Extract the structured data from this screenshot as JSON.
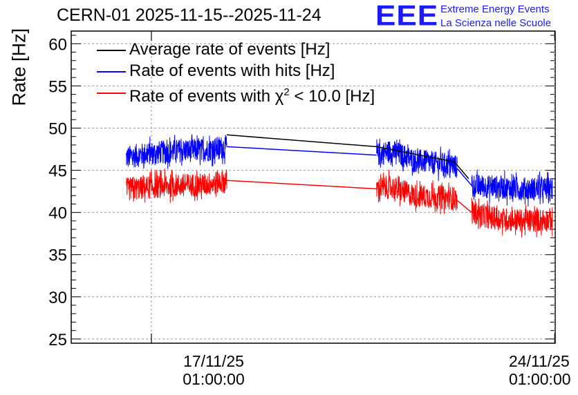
{
  "header": {
    "title": "CERN-01 2025-11-15--2025-11-24"
  },
  "logo": {
    "letters": "EEE",
    "line1": "Extreme Energy Events",
    "line2": "La Scienza nelle Scuole",
    "color": "#1a1aff"
  },
  "chart_data": {
    "type": "line",
    "title": "CERN-01 2025-11-15--2025-11-24",
    "xlabel": "",
    "ylabel": "Rate [Hz]",
    "ylim": [
      24.5,
      61.5
    ],
    "xlim_days": [
      15.65,
      24.05
    ],
    "yticks": [
      25,
      30,
      35,
      40,
      45,
      50,
      55,
      60
    ],
    "xticks": [
      {
        "day": 17.042,
        "date": "17/11/25",
        "time": "01:00:00"
      },
      {
        "day": 24.042,
        "date": "24/11/25",
        "time": "01:00:00"
      }
    ],
    "grid": true,
    "legend_position": "top-left",
    "segments_days": [
      [
        16.6,
        18.35
      ],
      [
        20.95,
        22.35
      ],
      [
        22.6,
        24.1
      ]
    ],
    "series": [
      {
        "name": "Average rate of events [Hz]",
        "color": "#000000",
        "points": [
          {
            "day": 18.35,
            "value": 49.2
          },
          {
            "day": 20.95,
            "value": 47.8
          },
          {
            "day": 22.3,
            "value": 46.0
          },
          {
            "day": 22.55,
            "value": 44.0
          }
        ]
      },
      {
        "name": "Rate of events with hits [Hz]",
        "color": "#0000ff",
        "points": [
          {
            "day": 16.6,
            "value": 46.5
          },
          {
            "day": 17.0,
            "value": 47.0
          },
          {
            "day": 17.5,
            "value": 47.3
          },
          {
            "day": 18.0,
            "value": 47.4
          },
          {
            "day": 18.35,
            "value": 47.8
          },
          {
            "day": 20.95,
            "value": 46.8
          },
          {
            "day": 21.2,
            "value": 47.3
          },
          {
            "day": 21.6,
            "value": 46.2
          },
          {
            "day": 22.0,
            "value": 45.8
          },
          {
            "day": 22.3,
            "value": 45.6
          },
          {
            "day": 22.6,
            "value": 43.2
          },
          {
            "day": 23.0,
            "value": 43.0
          },
          {
            "day": 23.5,
            "value": 42.8
          },
          {
            "day": 24.1,
            "value": 42.8
          }
        ],
        "noise": 1.4
      },
      {
        "name": "Rate of events with chi2 < 10.0 [Hz]",
        "label_prefix": "Rate of events with ",
        "label_symbol": "χ",
        "label_exponent": "2",
        "label_suffix": " < 10.0 [Hz]",
        "color": "#ff0000",
        "points": [
          {
            "day": 16.6,
            "value": 42.7
          },
          {
            "day": 17.0,
            "value": 43.0
          },
          {
            "day": 17.5,
            "value": 43.2
          },
          {
            "day": 18.0,
            "value": 43.3
          },
          {
            "day": 18.35,
            "value": 43.8
          },
          {
            "day": 20.95,
            "value": 42.8
          },
          {
            "day": 21.2,
            "value": 43.0
          },
          {
            "day": 21.6,
            "value": 42.0
          },
          {
            "day": 22.0,
            "value": 41.8
          },
          {
            "day": 22.3,
            "value": 41.7
          },
          {
            "day": 22.6,
            "value": 40.0
          },
          {
            "day": 23.0,
            "value": 39.3
          },
          {
            "day": 23.5,
            "value": 39.0
          },
          {
            "day": 24.1,
            "value": 39.2
          }
        ],
        "noise": 1.4
      }
    ]
  }
}
